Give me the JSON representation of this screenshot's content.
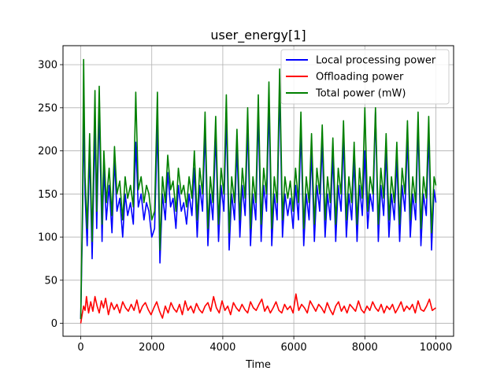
{
  "chart_data": {
    "type": "line",
    "title": "user_energy[1]",
    "xlabel": "Time",
    "ylabel": "",
    "xlim": [
      -500,
      10500
    ],
    "ylim": [
      -15,
      322
    ],
    "xticks": [
      0,
      2000,
      4000,
      6000,
      8000,
      10000
    ],
    "yticks": [
      0,
      50,
      100,
      150,
      200,
      250,
      300
    ],
    "grid": true,
    "legend_position": "top-right",
    "series": [
      {
        "name": "Local processing power",
        "color": "#0000ff",
        "x": [
          0,
          50,
          80,
          120,
          180,
          250,
          320,
          400,
          450,
          520,
          600,
          650,
          720,
          800,
          880,
          950,
          1020,
          1100,
          1180,
          1250,
          1320,
          1400,
          1480,
          1550,
          1620,
          1700,
          1780,
          1850,
          1920,
          2000,
          2080,
          2160,
          2230,
          2300,
          2380,
          2450,
          2530,
          2600,
          2680,
          2750,
          2830,
          2900,
          2980,
          3050,
          3130,
          3200,
          3280,
          3350,
          3430,
          3500,
          3580,
          3650,
          3720,
          3800,
          3880,
          3950,
          4030,
          4100,
          4180,
          4250,
          4330,
          4400,
          4480,
          4550,
          4630,
          4700,
          4780,
          4850,
          4930,
          5000,
          5080,
          5150,
          5230,
          5300,
          5380,
          5450,
          5530,
          5600,
          5680,
          5750,
          5830,
          5900,
          5980,
          6050,
          6130,
          6200,
          6280,
          6350,
          6430,
          6500,
          6580,
          6650,
          6730,
          6800,
          6880,
          6950,
          7030,
          7100,
          7180,
          7250,
          7330,
          7400,
          7480,
          7550,
          7630,
          7700,
          7780,
          7850,
          7930,
          8000,
          8080,
          8150,
          8230,
          8300,
          8380,
          8450,
          8530,
          8600,
          8680,
          8750,
          8830,
          8900,
          8980,
          9050,
          9130,
          9200,
          9280,
          9350,
          9430,
          9500,
          9580,
          9650,
          9730,
          9800,
          9880,
          9950,
          10000
        ],
        "y": [
          5,
          120,
          240,
          150,
          90,
          200,
          75,
          230,
          110,
          250,
          95,
          180,
          120,
          160,
          105,
          190,
          130,
          145,
          100,
          150,
          125,
          140,
          115,
          210,
          135,
          150,
          120,
          140,
          130,
          100,
          110,
          230,
          70,
          150,
          120,
          175,
          135,
          145,
          110,
          160,
          130,
          140,
          115,
          150,
          125,
          180,
          100,
          160,
          130,
          225,
          90,
          150,
          120,
          220,
          95,
          160,
          130,
          240,
          85,
          150,
          120,
          205,
          100,
          160,
          125,
          230,
          90,
          150,
          120,
          245,
          95,
          160,
          130,
          255,
          90,
          150,
          120,
          275,
          100,
          150,
          125,
          145,
          110,
          160,
          120,
          225,
          90,
          150,
          120,
          200,
          95,
          160,
          130,
          210,
          100,
          150,
          120,
          195,
          95,
          160,
          130,
          215,
          100,
          150,
          120,
          190,
          95,
          160,
          125,
          200,
          110,
          150,
          130,
          245,
          95,
          160,
          125,
          200,
          100,
          150,
          120,
          190,
          95,
          160,
          130,
          215,
          100,
          150,
          120,
          230,
          90,
          150,
          125,
          220,
          85,
          155,
          140
        ]
      },
      {
        "name": "Offloading power",
        "color": "#ff0000",
        "x": [
          0,
          40,
          80,
          120,
          160,
          220,
          280,
          340,
          400,
          460,
          520,
          580,
          640,
          700,
          780,
          860,
          940,
          1020,
          1100,
          1180,
          1260,
          1340,
          1420,
          1500,
          1580,
          1660,
          1740,
          1820,
          1900,
          1980,
          2060,
          2140,
          2220,
          2300,
          2380,
          2460,
          2540,
          2620,
          2700,
          2780,
          2860,
          2940,
          3020,
          3100,
          3180,
          3260,
          3340,
          3420,
          3500,
          3580,
          3660,
          3740,
          3820,
          3900,
          3980,
          4060,
          4140,
          4220,
          4300,
          4380,
          4460,
          4540,
          4620,
          4700,
          4780,
          4860,
          4940,
          5020,
          5100,
          5180,
          5260,
          5340,
          5420,
          5500,
          5580,
          5660,
          5740,
          5820,
          5900,
          5980,
          6060,
          6140,
          6220,
          6300,
          6380,
          6460,
          6540,
          6620,
          6700,
          6780,
          6860,
          6940,
          7020,
          7100,
          7180,
          7260,
          7340,
          7420,
          7500,
          7580,
          7660,
          7740,
          7820,
          7900,
          7980,
          8060,
          8140,
          8220,
          8300,
          8380,
          8460,
          8540,
          8620,
          8700,
          8780,
          8860,
          8940,
          9020,
          9100,
          9180,
          9260,
          9340,
          9420,
          9500,
          9580,
          9660,
          9740,
          9820,
          9900,
          10000
        ],
        "y": [
          0,
          10,
          20,
          15,
          31,
          12,
          25,
          14,
          31,
          20,
          12,
          26,
          18,
          29,
          10,
          24,
          16,
          22,
          12,
          25,
          18,
          14,
          22,
          15,
          27,
          12,
          20,
          24,
          16,
          10,
          18,
          25,
          14,
          6,
          20,
          12,
          24,
          17,
          13,
          22,
          10,
          26,
          15,
          20,
          12,
          23,
          16,
          12,
          20,
          24,
          14,
          31,
          18,
          12,
          26,
          15,
          20,
          10,
          24,
          18,
          14,
          22,
          16,
          12,
          25,
          18,
          15,
          22,
          28,
          14,
          20,
          12,
          18,
          25,
          15,
          12,
          22,
          16,
          20,
          12,
          34,
          15,
          22,
          18,
          12,
          26,
          20,
          14,
          22,
          18,
          12,
          24,
          16,
          10,
          20,
          25,
          14,
          20,
          12,
          22,
          18,
          14,
          26,
          16,
          12,
          20,
          15,
          25,
          18,
          14,
          22,
          12,
          20,
          16,
          22,
          12,
          18,
          25,
          14,
          20,
          16,
          22,
          12,
          26,
          16,
          14,
          20,
          28,
          15,
          18
        ]
      },
      {
        "name": "Total power (mW)",
        "color": "#008000",
        "x": [
          0,
          50,
          80,
          120,
          180,
          250,
          320,
          400,
          450,
          520,
          600,
          650,
          720,
          800,
          880,
          950,
          1020,
          1100,
          1180,
          1250,
          1320,
          1400,
          1480,
          1550,
          1620,
          1700,
          1780,
          1850,
          1920,
          2000,
          2080,
          2160,
          2230,
          2300,
          2380,
          2450,
          2530,
          2600,
          2680,
          2750,
          2830,
          2900,
          2980,
          3050,
          3130,
          3200,
          3280,
          3350,
          3430,
          3500,
          3580,
          3650,
          3720,
          3800,
          3880,
          3950,
          4030,
          4100,
          4180,
          4250,
          4330,
          4400,
          4480,
          4550,
          4630,
          4700,
          4780,
          4850,
          4930,
          5000,
          5080,
          5150,
          5230,
          5300,
          5380,
          5450,
          5530,
          5600,
          5680,
          5750,
          5830,
          5900,
          5980,
          6050,
          6130,
          6200,
          6280,
          6350,
          6430,
          6500,
          6580,
          6650,
          6730,
          6800,
          6880,
          6950,
          7030,
          7100,
          7180,
          7250,
          7330,
          7400,
          7480,
          7550,
          7630,
          7700,
          7780,
          7850,
          7930,
          8000,
          8080,
          8150,
          8230,
          8300,
          8380,
          8450,
          8530,
          8600,
          8680,
          8750,
          8830,
          8900,
          8980,
          9050,
          9130,
          9200,
          9280,
          9350,
          9430,
          9500,
          9580,
          9650,
          9730,
          9800,
          9880,
          9950,
          10000
        ],
        "y": [
          5,
          140,
          306,
          170,
          110,
          220,
          95,
          270,
          130,
          275,
          115,
          200,
          140,
          180,
          125,
          205,
          150,
          165,
          120,
          170,
          145,
          160,
          135,
          268,
          155,
          170,
          140,
          160,
          150,
          120,
          130,
          268,
          85,
          170,
          140,
          195,
          155,
          165,
          130,
          180,
          150,
          160,
          135,
          170,
          145,
          200,
          120,
          180,
          150,
          245,
          110,
          170,
          140,
          240,
          115,
          180,
          150,
          265,
          105,
          170,
          140,
          225,
          120,
          180,
          145,
          250,
          110,
          170,
          140,
          265,
          115,
          180,
          150,
          280,
          110,
          170,
          140,
          295,
          120,
          170,
          145,
          165,
          130,
          180,
          140,
          245,
          110,
          170,
          140,
          220,
          115,
          180,
          150,
          230,
          120,
          170,
          140,
          215,
          115,
          180,
          150,
          235,
          120,
          170,
          140,
          210,
          115,
          180,
          145,
          250,
          130,
          170,
          150,
          250,
          115,
          180,
          145,
          220,
          120,
          170,
          140,
          210,
          115,
          180,
          150,
          235,
          120,
          170,
          140,
          245,
          110,
          170,
          145,
          240,
          105,
          170,
          160
        ]
      }
    ]
  }
}
